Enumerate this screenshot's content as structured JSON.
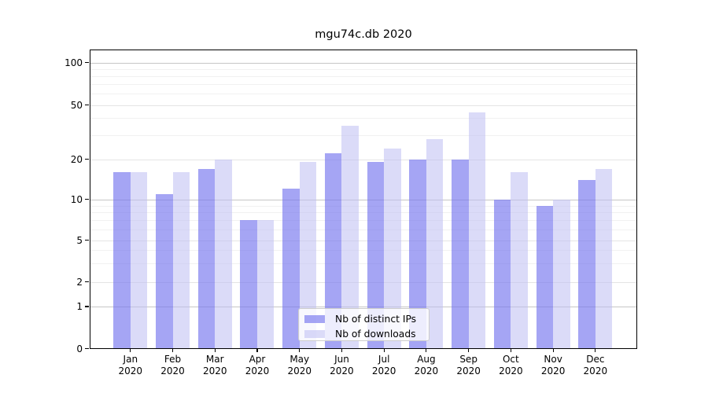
{
  "title": "mgu74c.db 2020",
  "chart_data": {
    "type": "bar",
    "title": "mgu74c.db 2020",
    "categories": [
      "Jan",
      "Feb",
      "Mar",
      "Apr",
      "May",
      "Jun",
      "Jul",
      "Aug",
      "Sep",
      "Oct",
      "Nov",
      "Dec"
    ],
    "x_sub_label": "2020",
    "series": [
      {
        "name": "Nb of distinct IPs",
        "color": "#7676ef",
        "opacity": 0.66,
        "values": [
          16,
          11,
          17,
          7,
          12,
          22,
          19,
          20,
          20,
          10,
          9,
          14
        ]
      },
      {
        "name": "Nb of downloads",
        "color": "#bebef2",
        "opacity": 0.55,
        "values": [
          16,
          16,
          20,
          7,
          19,
          35,
          24,
          28,
          44,
          16,
          10,
          17
        ]
      }
    ],
    "yscale": "log-like",
    "ylim": [
      0,
      130
    ],
    "y_major_ticks": [
      100,
      50,
      20,
      10,
      5,
      2,
      1,
      0
    ],
    "y_tick_labels": [
      "100",
      "50",
      "20",
      "10",
      "5",
      "2",
      "1",
      "0"
    ],
    "y_power_gridlines": [
      1,
      10,
      100
    ],
    "y_secondary_gridlines": [
      2,
      5,
      20,
      50
    ],
    "y_minor_gridlines": [
      3,
      4,
      6,
      7,
      8,
      9,
      30,
      40,
      60,
      70,
      80,
      90
    ],
    "grid": true,
    "legend_position": "bottom-center",
    "grid_colors": {
      "power": "#c6c6c6",
      "secondary": "#e4e4e4",
      "minor": "#f1f1f1"
    }
  }
}
